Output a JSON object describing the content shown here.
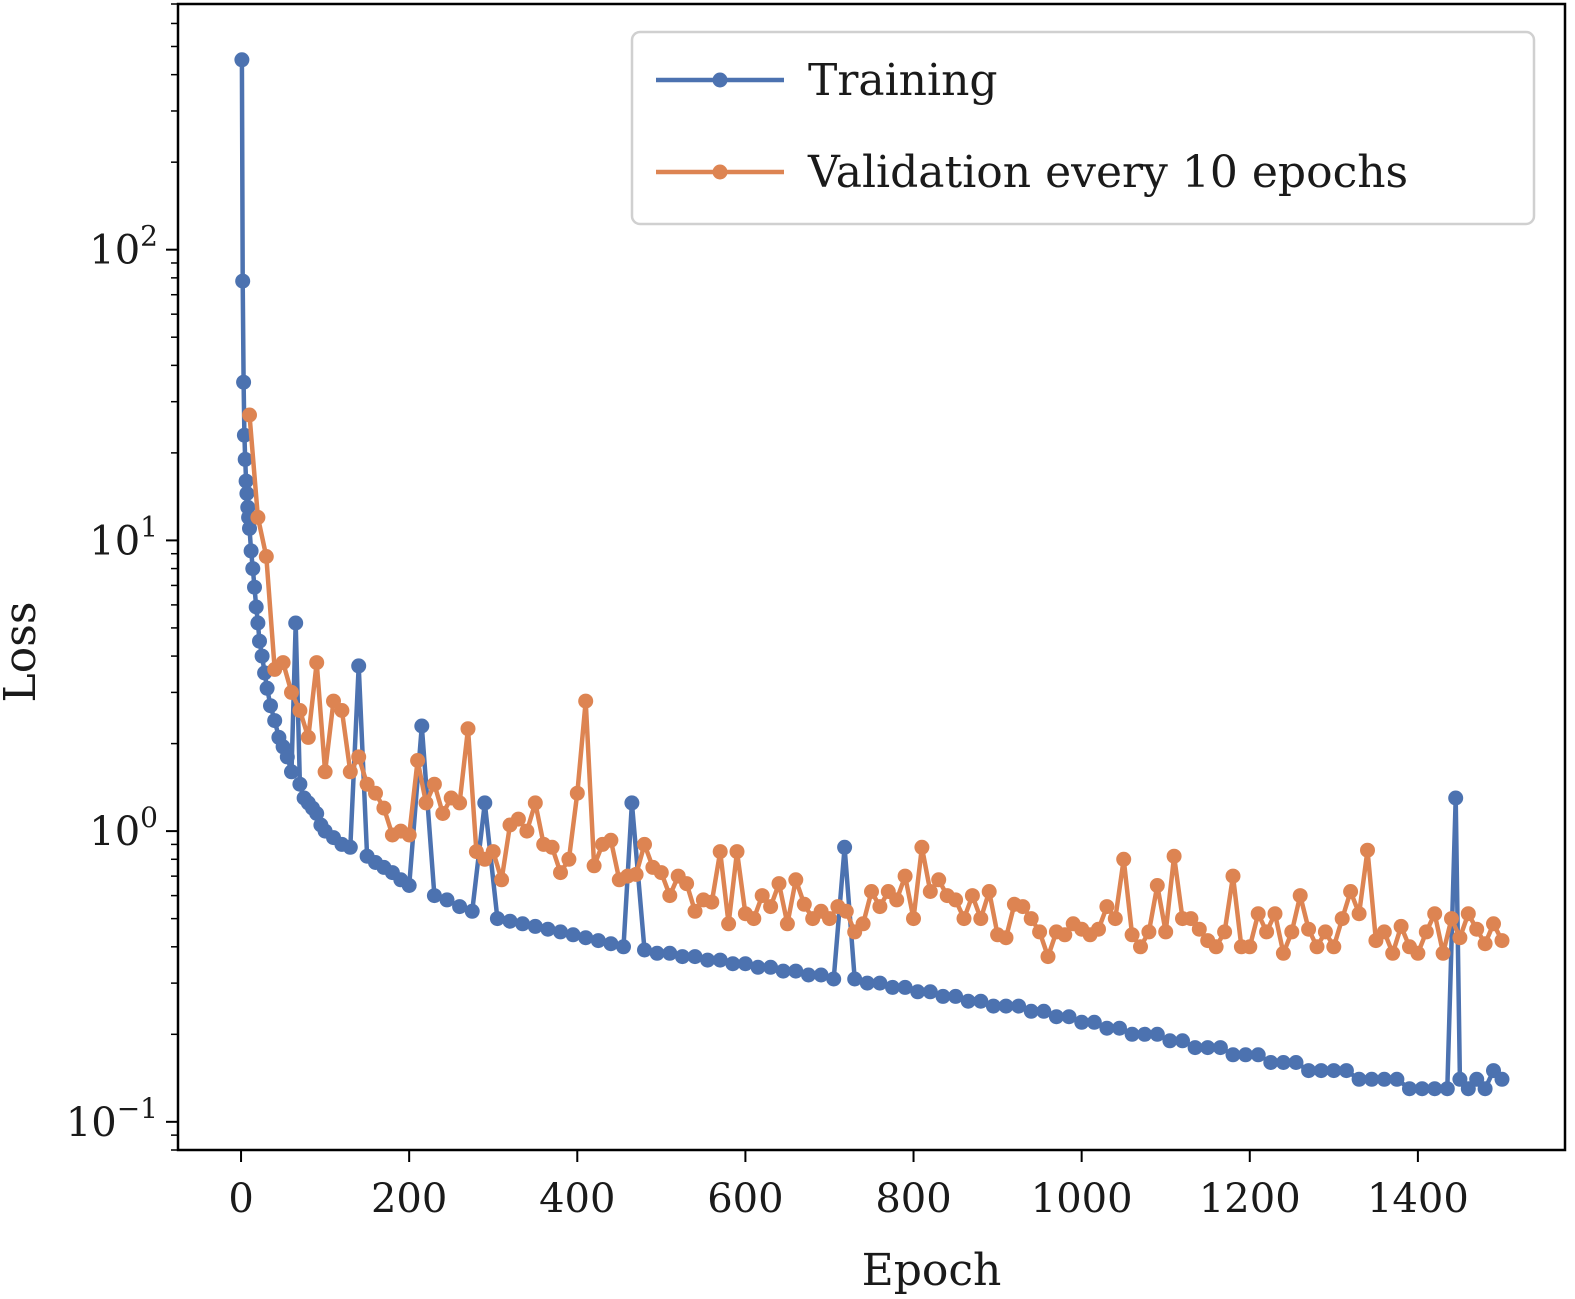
{
  "chart_data": {
    "type": "line",
    "title": "",
    "xlabel": "Epoch",
    "ylabel": "Loss",
    "yscale": "log",
    "xlim": [
      -75,
      1575
    ],
    "ylim": [
      0.08,
      700
    ],
    "xticks": [
      0,
      200,
      400,
      600,
      800,
      1000,
      1200,
      1400
    ],
    "xtick_labels": [
      "0",
      "200",
      "400",
      "600",
      "800",
      "1000",
      "1200",
      "1400"
    ],
    "yticks": [
      0.1,
      1,
      10,
      100
    ],
    "ytick_base_labels": [
      "10",
      "10",
      "10",
      "10"
    ],
    "ytick_exp_labels": [
      "−1",
      "0",
      "1",
      "2"
    ],
    "legend_position": "top-right",
    "series": [
      {
        "name": "Training",
        "color": "#4c72b0",
        "x": [
          1,
          2,
          3,
          4,
          5,
          6,
          7,
          8,
          9,
          10,
          12,
          14,
          16,
          18,
          20,
          22,
          25,
          28,
          31,
          35,
          40,
          45,
          50,
          55,
          60,
          65,
          70,
          75,
          80,
          85,
          90,
          95,
          100,
          110,
          120,
          130,
          140,
          150,
          160,
          170,
          180,
          190,
          200,
          215,
          230,
          245,
          260,
          275,
          290,
          305,
          320,
          335,
          350,
          365,
          380,
          395,
          410,
          425,
          440,
          455,
          465,
          480,
          495,
          510,
          525,
          540,
          555,
          570,
          585,
          600,
          615,
          630,
          645,
          660,
          675,
          690,
          705,
          718,
          730,
          745,
          760,
          775,
          790,
          805,
          820,
          835,
          850,
          865,
          880,
          895,
          910,
          925,
          940,
          955,
          970,
          985,
          1000,
          1015,
          1030,
          1045,
          1060,
          1075,
          1090,
          1105,
          1120,
          1135,
          1150,
          1165,
          1180,
          1195,
          1210,
          1225,
          1240,
          1255,
          1270,
          1285,
          1300,
          1315,
          1330,
          1345,
          1360,
          1375,
          1390,
          1405,
          1420,
          1435,
          1445,
          1450,
          1460,
          1470,
          1480,
          1490,
          1500
        ],
        "values": [
          450,
          78,
          35,
          23,
          19,
          16,
          14.5,
          13,
          12,
          11,
          9.2,
          8,
          6.9,
          5.9,
          5.2,
          4.5,
          4.0,
          3.5,
          3.1,
          2.7,
          2.4,
          2.1,
          1.95,
          1.8,
          1.6,
          5.2,
          1.45,
          1.3,
          1.25,
          1.2,
          1.15,
          1.05,
          1.0,
          0.95,
          0.9,
          0.88,
          3.7,
          0.82,
          0.78,
          0.75,
          0.72,
          0.68,
          0.65,
          2.3,
          0.6,
          0.58,
          0.55,
          0.53,
          1.25,
          0.5,
          0.49,
          0.48,
          0.47,
          0.46,
          0.45,
          0.44,
          0.43,
          0.42,
          0.41,
          0.4,
          1.25,
          0.39,
          0.38,
          0.38,
          0.37,
          0.37,
          0.36,
          0.36,
          0.35,
          0.35,
          0.34,
          0.34,
          0.33,
          0.33,
          0.32,
          0.32,
          0.31,
          0.88,
          0.31,
          0.3,
          0.3,
          0.29,
          0.29,
          0.28,
          0.28,
          0.27,
          0.27,
          0.26,
          0.26,
          0.25,
          0.25,
          0.25,
          0.24,
          0.24,
          0.23,
          0.23,
          0.22,
          0.22,
          0.21,
          0.21,
          0.2,
          0.2,
          0.2,
          0.19,
          0.19,
          0.18,
          0.18,
          0.18,
          0.17,
          0.17,
          0.17,
          0.16,
          0.16,
          0.16,
          0.15,
          0.15,
          0.15,
          0.15,
          0.14,
          0.14,
          0.14,
          0.14,
          0.13,
          0.13,
          0.13,
          0.13,
          1.3,
          0.14,
          0.13,
          0.14,
          0.13,
          0.15,
          0.14
        ]
      },
      {
        "name": "Validation every 10 epochs",
        "color": "#dd8452",
        "x": [
          10,
          20,
          30,
          40,
          50,
          60,
          70,
          80,
          90,
          100,
          110,
          120,
          130,
          140,
          150,
          160,
          170,
          180,
          190,
          200,
          210,
          220,
          230,
          240,
          250,
          260,
          270,
          280,
          290,
          300,
          310,
          320,
          330,
          340,
          350,
          360,
          370,
          380,
          390,
          400,
          410,
          420,
          430,
          440,
          450,
          460,
          470,
          480,
          490,
          500,
          510,
          520,
          530,
          540,
          550,
          560,
          570,
          580,
          590,
          600,
          610,
          620,
          630,
          640,
          650,
          660,
          670,
          680,
          690,
          700,
          710,
          720,
          730,
          740,
          750,
          760,
          770,
          780,
          790,
          800,
          810,
          820,
          830,
          840,
          850,
          860,
          870,
          880,
          890,
          900,
          910,
          920,
          930,
          940,
          950,
          960,
          970,
          980,
          990,
          1000,
          1010,
          1020,
          1030,
          1040,
          1050,
          1060,
          1070,
          1080,
          1090,
          1100,
          1110,
          1120,
          1130,
          1140,
          1150,
          1160,
          1170,
          1180,
          1190,
          1200,
          1210,
          1220,
          1230,
          1240,
          1250,
          1260,
          1270,
          1280,
          1290,
          1300,
          1310,
          1320,
          1330,
          1340,
          1350,
          1360,
          1370,
          1380,
          1390,
          1400,
          1410,
          1420,
          1430,
          1440,
          1450,
          1460,
          1470,
          1480,
          1490,
          1500
        ],
        "values": [
          27,
          12,
          8.8,
          3.6,
          3.8,
          3.0,
          2.6,
          2.1,
          3.8,
          1.6,
          2.8,
          2.6,
          1.6,
          1.8,
          1.45,
          1.35,
          1.2,
          0.97,
          1.0,
          0.97,
          1.75,
          1.25,
          1.45,
          1.15,
          1.3,
          1.25,
          2.25,
          0.85,
          0.8,
          0.85,
          0.68,
          1.05,
          1.1,
          1.0,
          1.25,
          0.9,
          0.88,
          0.72,
          0.8,
          1.35,
          2.8,
          0.76,
          0.9,
          0.93,
          0.68,
          0.7,
          0.71,
          0.9,
          0.75,
          0.72,
          0.6,
          0.7,
          0.66,
          0.53,
          0.58,
          0.57,
          0.85,
          0.48,
          0.85,
          0.52,
          0.5,
          0.6,
          0.55,
          0.66,
          0.48,
          0.68,
          0.56,
          0.5,
          0.53,
          0.5,
          0.55,
          0.53,
          0.45,
          0.48,
          0.62,
          0.55,
          0.62,
          0.58,
          0.7,
          0.5,
          0.88,
          0.62,
          0.68,
          0.6,
          0.58,
          0.5,
          0.6,
          0.5,
          0.62,
          0.44,
          0.43,
          0.56,
          0.55,
          0.5,
          0.45,
          0.37,
          0.45,
          0.44,
          0.48,
          0.46,
          0.44,
          0.46,
          0.55,
          0.5,
          0.8,
          0.44,
          0.4,
          0.45,
          0.65,
          0.45,
          0.82,
          0.5,
          0.5,
          0.46,
          0.42,
          0.4,
          0.45,
          0.7,
          0.4,
          0.4,
          0.52,
          0.45,
          0.52,
          0.38,
          0.45,
          0.6,
          0.46,
          0.4,
          0.45,
          0.4,
          0.5,
          0.62,
          0.52,
          0.86,
          0.42,
          0.45,
          0.38,
          0.47,
          0.4,
          0.38,
          0.45,
          0.52,
          0.38,
          0.5,
          0.43,
          0.52,
          0.46,
          0.41,
          0.48,
          0.42
        ]
      }
    ]
  }
}
